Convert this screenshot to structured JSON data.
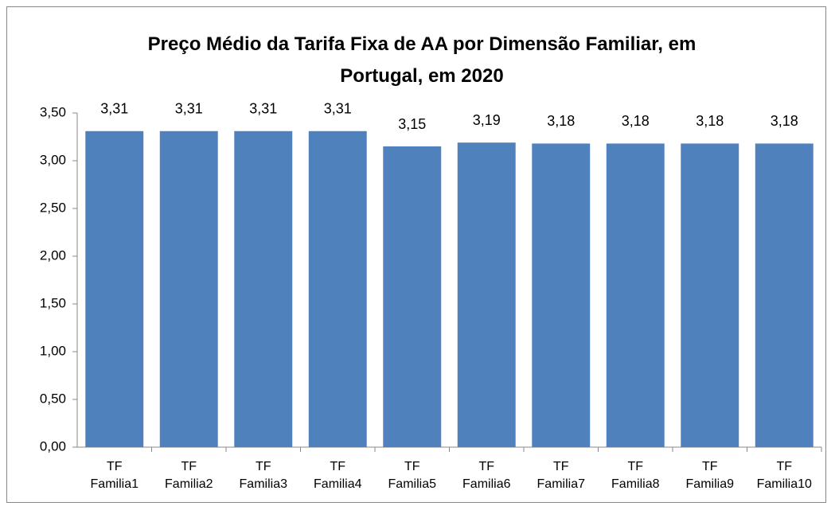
{
  "chart_data": {
    "type": "bar",
    "title": "Preço Médio da Tarifa Fixa de AA  por Dimensão Familiar, em Portugal, em 2020",
    "categories": [
      "TF Familia1",
      "TF Familia2",
      "TF Familia3",
      "TF Familia4",
      "TF Familia5",
      "TF Familia6",
      "TF Familia7",
      "TF Familia8",
      "TF Familia9",
      "TF Familia10"
    ],
    "values": [
      3.31,
      3.31,
      3.31,
      3.31,
      3.15,
      3.19,
      3.18,
      3.18,
      3.18,
      3.18
    ],
    "value_labels": [
      "3,31",
      "3,31",
      "3,31",
      "3,31",
      "3,15",
      "3,19",
      "3,18",
      "3,18",
      "3,18",
      "3,18"
    ],
    "color": "#4f81bd",
    "ylim": [
      0,
      3.5
    ],
    "yticks": [
      {
        "value": 0,
        "label": "0,00"
      },
      {
        "value": 0.5,
        "label": "0,50"
      },
      {
        "value": 1,
        "label": "1,00"
      },
      {
        "value": 1.5,
        "label": "1,50"
      },
      {
        "value": 2,
        "label": "2,00"
      },
      {
        "value": 2.5,
        "label": "2,50"
      },
      {
        "value": 3,
        "label": "3,00"
      },
      {
        "value": 3.5,
        "label": "3,50"
      }
    ],
    "grid": false
  }
}
